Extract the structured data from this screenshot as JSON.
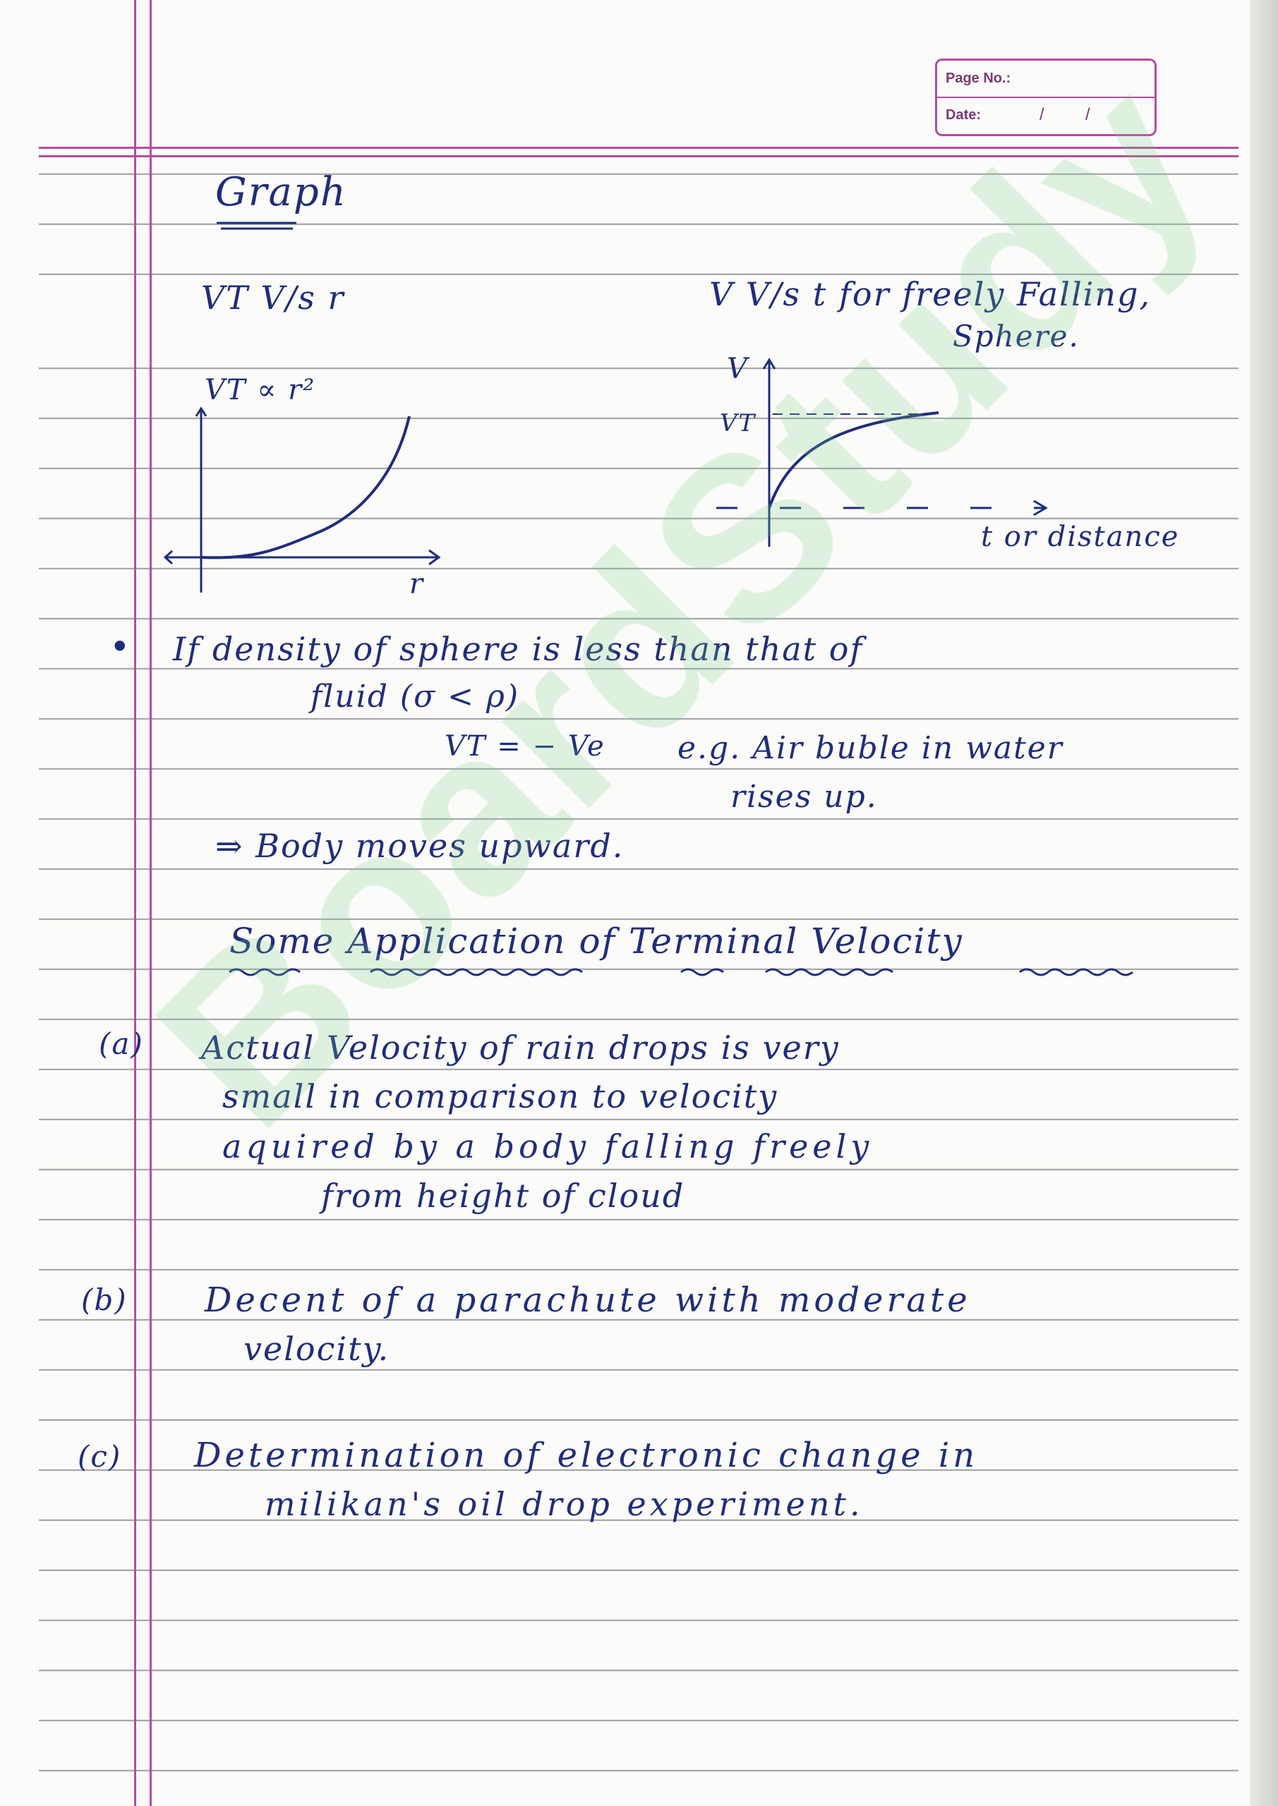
{
  "stamp": {
    "page_label": "Page No.:",
    "date_label": "Date:",
    "date_sep": "/"
  },
  "heading": "Graph",
  "graph_left": {
    "title": "VT V/s r",
    "relation": "VT ∝ r²",
    "x_axis": "r"
  },
  "graph_right": {
    "title": "V V/s t for freely Falling,",
    "title_line2": "Sphere.",
    "y_axis": "V",
    "y_mark": "VT",
    "x_axis": "t or distance"
  },
  "note": {
    "bullet": "•",
    "line1": "If density of sphere is less than that of",
    "line2": "fluid (σ < ρ)",
    "formula": "VT = − Ve",
    "example_line1": "e.g. Air buble in water",
    "example_line2": "rises up.",
    "result": "⇒ Body moves upward."
  },
  "section_title": "Some Application of Terminal Velocity",
  "items": [
    {
      "marker": "(a)",
      "lines": [
        "Actual Velocity of rain drops is very",
        "small in comparison to velocity",
        "aquired by a body falling freely",
        "from height of cloud"
      ]
    },
    {
      "marker": "(b)",
      "lines": [
        "Decent of a parachute with moderate",
        "velocity."
      ]
    },
    {
      "marker": "(c)",
      "lines": [
        "Determination of electronic change in",
        "milikan's oil drop experiment."
      ]
    }
  ],
  "watermark": "BoardStudy",
  "colors": {
    "ink": "#1f2d7a",
    "margin": "#b44ba4",
    "rule": "#9a9aa0",
    "watermark": "#78cd82"
  }
}
